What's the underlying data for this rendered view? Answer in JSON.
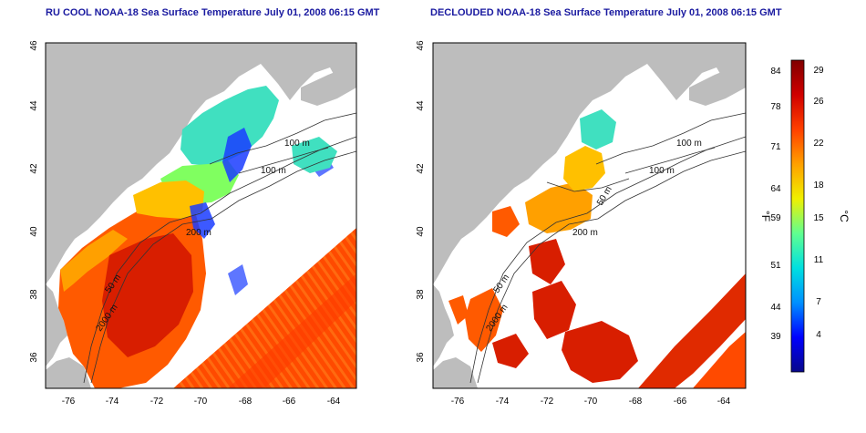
{
  "maps": [
    {
      "title": "RU COOL NOAA-18 Sea Surface Temperature July 01, 2008 06:15 GMT",
      "x_ticks": [
        "-76",
        "-74",
        "-72",
        "-70",
        "-68",
        "-66",
        "-64"
      ],
      "y_ticks": [
        "36",
        "38",
        "40",
        "42",
        "44",
        "46"
      ],
      "contour_labels": [
        "100 m",
        "100 m",
        "200 m",
        "50 m",
        "2000 m"
      ]
    },
    {
      "title": "DECLOUDED NOAA-18 Sea Surface Temperature July 01, 2008 06:15 GMT",
      "x_ticks": [
        "-76",
        "-74",
        "-72",
        "-70",
        "-68",
        "-66",
        "-64"
      ],
      "y_ticks": [
        "36",
        "38",
        "40",
        "42",
        "44",
        "46"
      ],
      "contour_labels": [
        "100 m",
        "100 m",
        "200 m",
        "50 m",
        "50 m",
        "2000 m"
      ]
    }
  ],
  "colorbar": {
    "unit_f": "°F",
    "unit_c": "°C",
    "f_ticks": [
      "84",
      "78",
      "71",
      "64",
      "59",
      "51",
      "44",
      "39"
    ],
    "c_ticks": [
      "29",
      "26",
      "22",
      "18",
      "15",
      "11",
      "7",
      "4"
    ],
    "colors": [
      "#08088a",
      "#0000ff",
      "#0090ff",
      "#00e0e0",
      "#60ff90",
      "#f0f000",
      "#ffa000",
      "#ff4000",
      "#d00000",
      "#800000"
    ]
  },
  "legend_colors": {
    "land": "#bdbdbd",
    "no_data": "#ffffff",
    "cold": "#1a3cff",
    "cool": "#40e0c0",
    "mild": "#ffc000",
    "warm": "#ff5a00",
    "hot": "#d81e00"
  }
}
